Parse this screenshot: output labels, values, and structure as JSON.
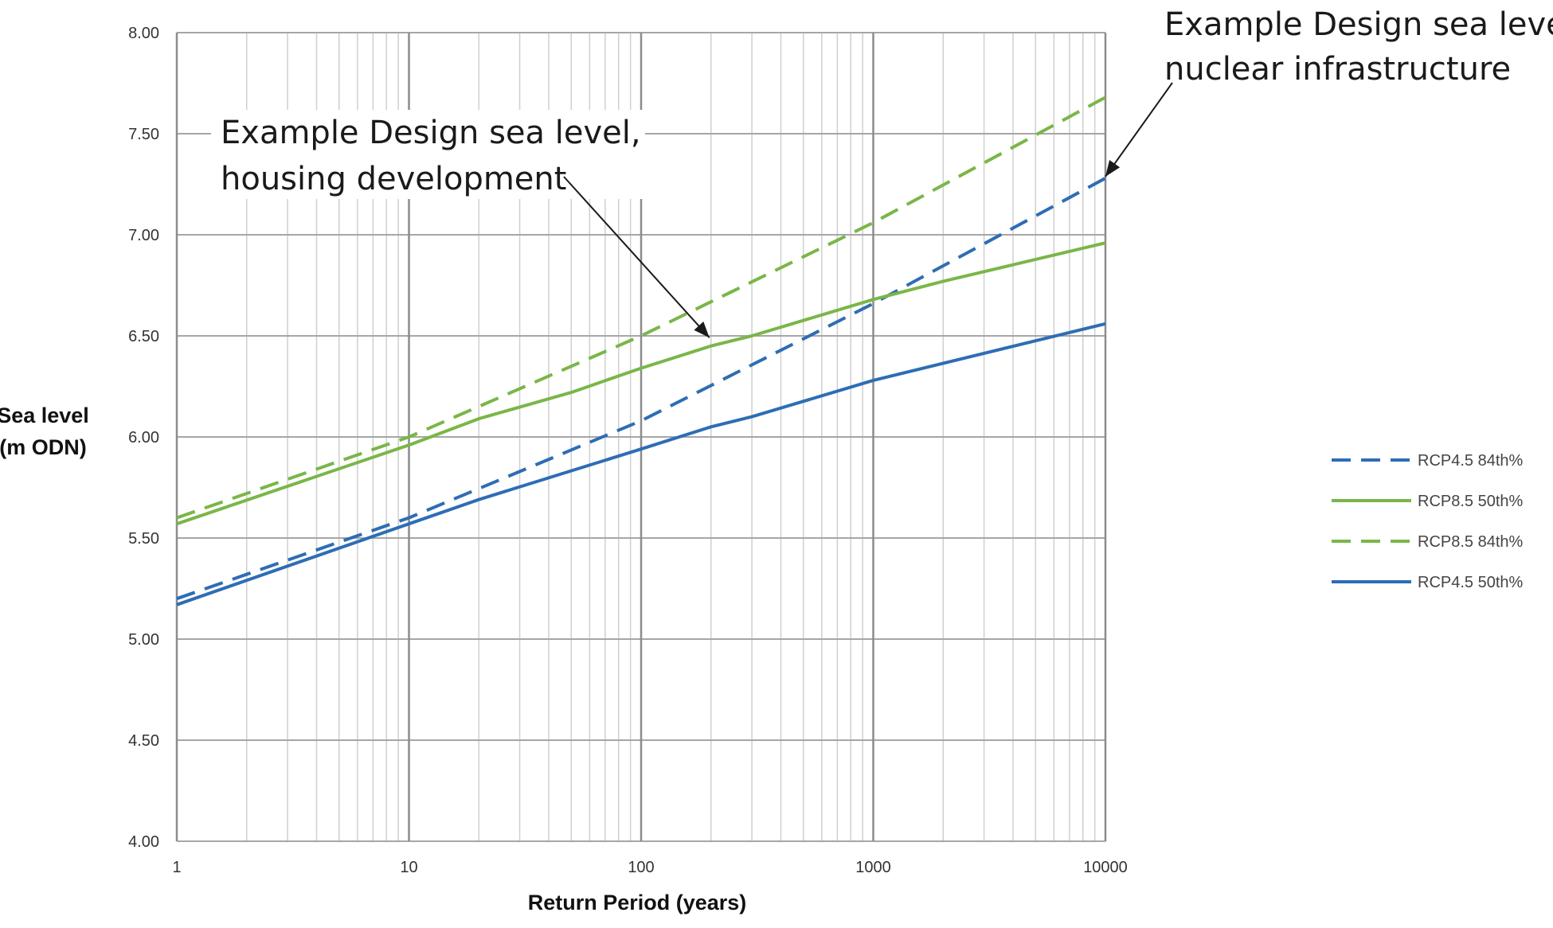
{
  "chart_data": {
    "type": "line",
    "title": "",
    "xlabel": "Return Period (years)",
    "ylabel_lines": [
      "Sea level",
      "(m ODN)"
    ],
    "x_scale": "log",
    "xlim": [
      1,
      10000
    ],
    "ylim": [
      4.0,
      8.0
    ],
    "x_ticks": [
      1,
      10,
      100,
      1000,
      10000
    ],
    "x_tick_labels": [
      "1",
      "10",
      "100",
      "1000",
      "10000"
    ],
    "y_ticks": [
      4.0,
      4.5,
      5.0,
      5.5,
      6.0,
      6.5,
      7.0,
      7.5,
      8.0
    ],
    "y_tick_labels": [
      "4.00",
      "4.50",
      "5.00",
      "5.50",
      "6.00",
      "6.50",
      "7.00",
      "7.50",
      "8.00"
    ],
    "grid": true,
    "legend_position": "right",
    "series": [
      {
        "name": "RCP4.5 84th%",
        "color": "#2e6db4",
        "dash": "dashed",
        "x": [
          1,
          10,
          100,
          1000,
          10000
        ],
        "y": [
          5.2,
          5.6,
          6.08,
          6.66,
          7.28
        ]
      },
      {
        "name": "RCP8.5 50th%",
        "color": "#7ab648",
        "dash": "solid",
        "x": [
          1,
          10,
          20,
          50,
          100,
          200,
          300,
          1000,
          2000,
          10000
        ],
        "y": [
          5.57,
          5.96,
          6.09,
          6.22,
          6.34,
          6.45,
          6.5,
          6.68,
          6.77,
          6.96
        ]
      },
      {
        "name": "RCP8.5 84th%",
        "color": "#7ab648",
        "dash": "dashed",
        "x": [
          1,
          10,
          100,
          1000,
          10000
        ],
        "y": [
          5.6,
          6.0,
          6.5,
          7.06,
          7.68
        ]
      },
      {
        "name": "RCP4.5 50th%",
        "color": "#2e6db4",
        "dash": "solid",
        "x": [
          1,
          10,
          20,
          100,
          200,
          300,
          1000,
          10000
        ],
        "y": [
          5.17,
          5.57,
          5.69,
          5.94,
          6.05,
          6.1,
          6.28,
          6.56
        ]
      }
    ],
    "annotations": [
      {
        "lines": [
          "Example Design sea level,",
          "housing development"
        ],
        "arrow_to": {
          "x": 200,
          "y": 6.44
        }
      },
      {
        "lines": [
          "Example Design sea level",
          "nuclear infrastructure"
        ],
        "arrow_to": {
          "x": 10000,
          "y": 7.28
        }
      }
    ]
  }
}
